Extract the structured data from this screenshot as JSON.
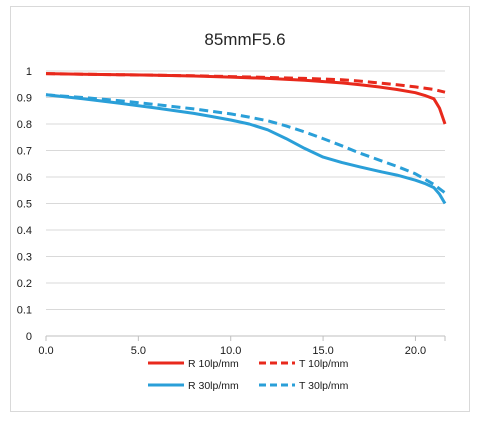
{
  "chart_data": {
    "type": "line",
    "title": "85mmF5.6",
    "xlabel": "",
    "ylabel": "",
    "xlim": [
      0,
      21.6
    ],
    "ylim": [
      0,
      1
    ],
    "x_ticks": [
      0,
      5,
      10,
      15,
      20
    ],
    "x_tick_labels": [
      "0.0",
      "5.0",
      "10.0",
      "15.0",
      "20.0"
    ],
    "y_ticks": [
      0,
      0.1,
      0.2,
      0.3,
      0.4,
      0.5,
      0.6,
      0.7,
      0.8,
      0.9,
      1
    ],
    "y_tick_labels": [
      "0",
      "0.1",
      "0.2",
      "0.3",
      "0.4",
      "0.5",
      "0.6",
      "0.7",
      "0.8",
      "0.9",
      "1"
    ],
    "grid": true,
    "legend_position": "bottom",
    "series": [
      {
        "name": "R 10lp/mm",
        "color": "#e8291c",
        "dash": "solid",
        "x": [
          0,
          2,
          4,
          6,
          8,
          10,
          12,
          14,
          16,
          17,
          18,
          19,
          20,
          20.5,
          21,
          21.3,
          21.6
        ],
        "y": [
          0.99,
          0.988,
          0.986,
          0.984,
          0.981,
          0.977,
          0.972,
          0.965,
          0.955,
          0.948,
          0.94,
          0.93,
          0.918,
          0.908,
          0.895,
          0.86,
          0.8
        ]
      },
      {
        "name": "T 10lp/mm",
        "color": "#e8291c",
        "dash": "dashed",
        "x": [
          0,
          2,
          4,
          6,
          8,
          10,
          12,
          14,
          16,
          17,
          18,
          19,
          20,
          21,
          21.6
        ],
        "y": [
          0.99,
          0.988,
          0.986,
          0.984,
          0.982,
          0.979,
          0.976,
          0.972,
          0.967,
          0.962,
          0.955,
          0.948,
          0.94,
          0.93,
          0.92
        ]
      },
      {
        "name": "R 30lp/mm",
        "color": "#2a9fd8",
        "dash": "solid",
        "x": [
          0,
          2,
          4,
          6,
          8,
          9,
          10,
          11,
          12,
          13,
          14,
          15,
          16,
          17,
          18,
          19,
          20,
          20.5,
          21,
          21.3,
          21.6
        ],
        "y": [
          0.91,
          0.895,
          0.878,
          0.86,
          0.84,
          0.828,
          0.815,
          0.8,
          0.778,
          0.745,
          0.708,
          0.675,
          0.655,
          0.638,
          0.622,
          0.607,
          0.588,
          0.576,
          0.56,
          0.535,
          0.5
        ]
      },
      {
        "name": "T 30lp/mm",
        "color": "#2a9fd8",
        "dash": "dashed",
        "x": [
          0,
          2,
          4,
          6,
          8,
          10,
          11,
          12,
          13,
          14,
          15,
          16,
          17,
          18,
          19,
          20,
          21,
          21.6
        ],
        "y": [
          0.91,
          0.9,
          0.888,
          0.873,
          0.857,
          0.838,
          0.826,
          0.812,
          0.793,
          0.77,
          0.745,
          0.718,
          0.69,
          0.665,
          0.64,
          0.612,
          0.572,
          0.54
        ]
      }
    ]
  }
}
